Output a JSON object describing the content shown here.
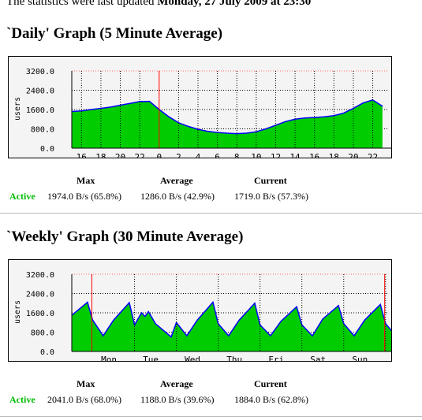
{
  "header": {
    "prefix": "The statistics were last updated",
    "date": "Monday, 27 July 2009 at 23:30"
  },
  "colors": {
    "fill": "#00cc00",
    "line": "#0000ff",
    "marker": "#ff0000",
    "grid": "#000000",
    "active": "#00bb00"
  },
  "daily": {
    "title": "`Daily' Graph (5 Minute Average)",
    "stats": {
      "max_label": "Max",
      "avg_label": "Average",
      "cur_label": "Current",
      "row_label": "Active",
      "max": "1974.0 B/s (65.8%)",
      "avg": "1286.0 B/s (42.9%)",
      "cur": "1719.0 B/s (57.3%)"
    }
  },
  "weekly": {
    "title": "`Weekly' Graph (30 Minute Average)",
    "stats": {
      "max_label": "Max",
      "avg_label": "Average",
      "cur_label": "Current",
      "row_label": "Active",
      "max": "2041.0 B/s (68.0%)",
      "avg": "1188.0 B/s (39.6%)",
      "cur": "1884.0 B/s (62.8%)"
    }
  },
  "chart_data": [
    {
      "type": "area",
      "ylabel": "users",
      "ylim": [
        0,
        3200
      ],
      "yticks": [
        "3200.0",
        "2400.0",
        "1600.0",
        "800.0",
        "0.0"
      ],
      "xticks": [
        "16",
        "18",
        "20",
        "22",
        "0",
        "2",
        "4",
        "6",
        "8",
        "10",
        "12",
        "14",
        "16",
        "18",
        "20",
        "22"
      ],
      "marker_at": "0",
      "grid": true,
      "x": [
        "15",
        "16",
        "17",
        "18",
        "19",
        "20",
        "21",
        "22",
        "23",
        "0",
        "1",
        "2",
        "3",
        "4",
        "5",
        "6",
        "7",
        "8",
        "9",
        "10",
        "11",
        "12",
        "13",
        "14",
        "15",
        "16",
        "17",
        "18",
        "19",
        "20",
        "21",
        "22",
        "23"
      ],
      "values": [
        1520,
        1540,
        1600,
        1650,
        1700,
        1780,
        1850,
        1930,
        1940,
        1600,
        1300,
        1050,
        900,
        780,
        700,
        650,
        620,
        600,
        620,
        680,
        800,
        950,
        1100,
        1200,
        1250,
        1270,
        1300,
        1350,
        1450,
        1650,
        1870,
        2000,
        1740
      ]
    },
    {
      "type": "area",
      "ylabel": "users",
      "ylim": [
        0,
        3200
      ],
      "yticks": [
        "3200.0",
        "2400.0",
        "1600.0",
        "800.0",
        "0.0"
      ],
      "xticks": [
        "Mon",
        "Tue",
        "Wed",
        "Thu",
        "Fri",
        "Sat",
        "Sun",
        "Mon"
      ],
      "marker_at": [
        "Sun 2009-07-19 23:30",
        "Sun 2009-07-26 23:30"
      ],
      "grid": true,
      "x": [
        "Sun 12:00",
        "Sun 21:00",
        "Mon 00:00",
        "Mon 06:00",
        "Mon 12:00",
        "Mon 21:00",
        "Tue 00:00",
        "Tue 04:00",
        "Tue 06:00",
        "Tue 08:00",
        "Tue 12:00",
        "Tue 21:00",
        "Wed 00:00",
        "Wed 06:00",
        "Wed 12:00",
        "Wed 21:00",
        "Thu 00:00",
        "Thu 06:00",
        "Thu 12:00",
        "Thu 21:00",
        "Fri 00:00",
        "Fri 06:00",
        "Fri 12:00",
        "Fri 21:00",
        "Sat 00:00",
        "Sat 06:00",
        "Sat 12:00",
        "Sat 21:00",
        "Sun 00:00",
        "Sun 06:00",
        "Sun 12:00",
        "Sun 21:00",
        "Mon 00:00",
        "Mon 06:00",
        "Mon 12:00",
        "Mon 23:30"
      ],
      "values": [
        1500,
        2040,
        1300,
        650,
        1300,
        2020,
        1100,
        1600,
        1450,
        1650,
        1150,
        600,
        1200,
        650,
        1300,
        2040,
        1150,
        650,
        1300,
        2000,
        1100,
        650,
        1250,
        1850,
        1100,
        650,
        1350,
        1900,
        1150,
        650,
        1300,
        1950,
        1150,
        650,
        1250,
        1884
      ]
    }
  ]
}
